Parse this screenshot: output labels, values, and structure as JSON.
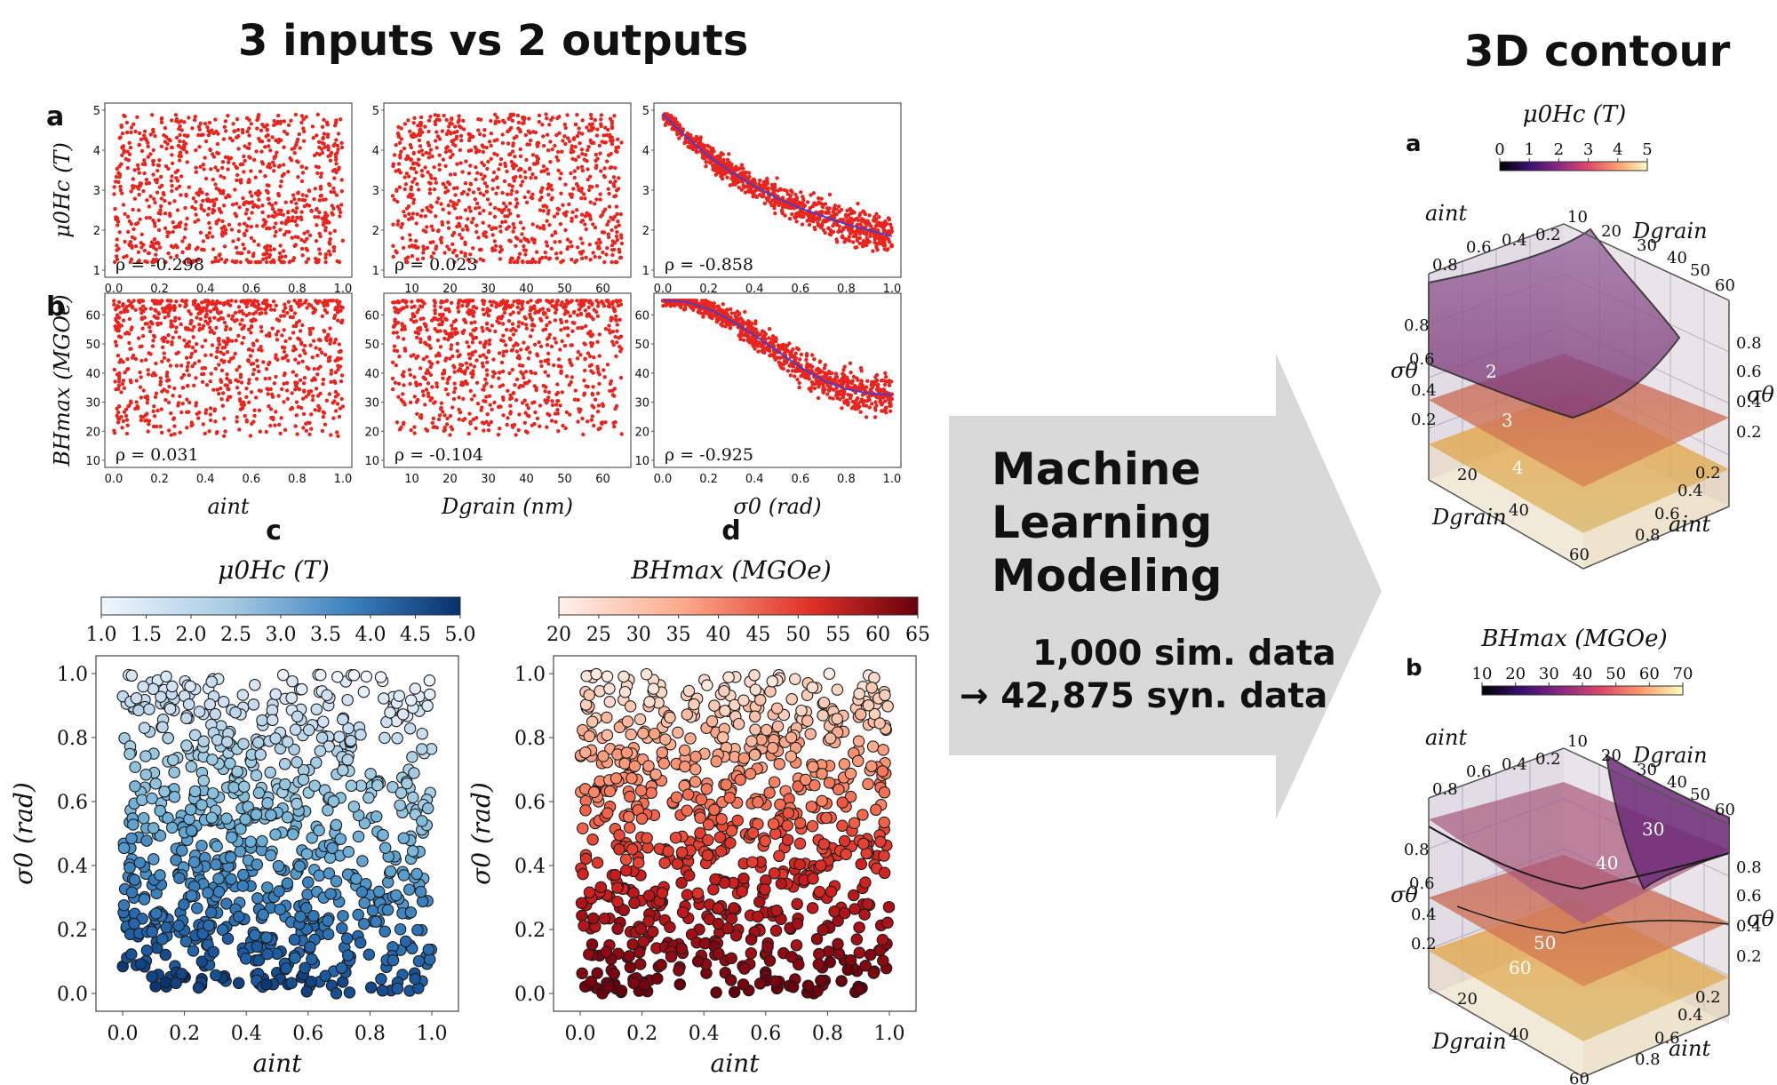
{
  "headings": {
    "left": "3 inputs vs 2 outputs",
    "right": "3D contour"
  },
  "arrow": {
    "line1": "Machine",
    "line2": "Learning",
    "line3": "Modeling",
    "data1": "1,000 sim. data",
    "data2": "→ 42,875 syn. data"
  },
  "colors": {
    "scatter_red": "#e8251f",
    "fit_line": "#4b3cc9",
    "arrow_gray": "#d9d9d9",
    "blue_dark": "#08306b",
    "blue_light": "#f0f6fd",
    "red_dark": "#67000d",
    "red_light": "#fff1ea"
  },
  "chart_data": [
    {
      "id": "a",
      "type": "scatter",
      "panel_label": "a",
      "ylabel": "μ0Hc (T)",
      "row_ylim": [
        1,
        5
      ],
      "yticks": [
        "1",
        "2",
        "3",
        "4",
        "5"
      ],
      "subplots": [
        {
          "xlabel": "aint",
          "xlim": [
            0,
            1
          ],
          "xticks": [
            "0.0",
            "0.2",
            "0.4",
            "0.6",
            "0.8",
            "1.0"
          ],
          "rho": "ρ = -0.298",
          "trend": "uniform_wide",
          "n_points": 1000
        },
        {
          "xlabel": "Dgrain (nm)",
          "xlim": [
            5,
            65
          ],
          "xticks": [
            "10",
            "20",
            "30",
            "40",
            "50",
            "60"
          ],
          "rho": "ρ = 0.023",
          "trend": "uniform_wide",
          "n_points": 1000
        },
        {
          "xlabel": "σ0 (rad)",
          "xlim": [
            0,
            1
          ],
          "xticks": [
            "0.0",
            "0.2",
            "0.4",
            "0.6",
            "0.8",
            "1.0"
          ],
          "rho": "ρ = -0.858",
          "trend": "decay",
          "fit_curve": {
            "x": [
              0,
              0.1,
              0.2,
              0.3,
              0.4,
              0.5,
              0.6,
              0.7,
              0.8,
              0.9,
              1.0
            ],
            "y": [
              4.9,
              4.35,
              3.85,
              3.45,
              3.1,
              2.8,
              2.55,
              2.35,
              2.15,
              2.0,
              1.85
            ]
          },
          "n_points": 1000
        }
      ]
    },
    {
      "id": "b",
      "type": "scatter",
      "panel_label": "b",
      "ylabel": "BHmax (MGOe)",
      "row_ylim": [
        10,
        65
      ],
      "yticks": [
        "10",
        "20",
        "30",
        "40",
        "50",
        "60"
      ],
      "subplots": [
        {
          "xlabel": "aint",
          "xlim": [
            0,
            1
          ],
          "xticks": [
            "0.0",
            "0.2",
            "0.4",
            "0.6",
            "0.8",
            "1.0"
          ],
          "rho": "ρ = 0.031",
          "trend": "uniform_high",
          "n_points": 1000
        },
        {
          "xlabel": "Dgrain (nm)",
          "xlim": [
            5,
            65
          ],
          "xticks": [
            "10",
            "20",
            "30",
            "40",
            "50",
            "60"
          ],
          "rho": "ρ = -0.104",
          "trend": "uniform_high",
          "n_points": 1000
        },
        {
          "xlabel": "σ0 (rad)",
          "xlim": [
            0,
            1
          ],
          "xticks": [
            "0.0",
            "0.2",
            "0.4",
            "0.6",
            "0.8",
            "1.0"
          ],
          "rho": "ρ = -0.925",
          "trend": "sigmoid",
          "fit_curve": {
            "x": [
              0,
              0.1,
              0.2,
              0.3,
              0.4,
              0.5,
              0.6,
              0.7,
              0.8,
              0.9,
              1.0
            ],
            "y": [
              65,
              64.5,
              62,
              58,
              53,
              47.5,
              42,
              37.5,
              34.5,
              33,
              32.5
            ]
          },
          "n_points": 1000
        }
      ]
    },
    {
      "id": "c",
      "type": "scatter",
      "panel_label": "c",
      "title": "μ0Hc (T)",
      "xlabel": "aint",
      "ylabel": "σ0 (rad)",
      "xlim": [
        0,
        1
      ],
      "ylim": [
        0,
        1
      ],
      "xticks": [
        "0.0",
        "0.2",
        "0.4",
        "0.6",
        "0.8",
        "1.0"
      ],
      "yticks": [
        "0.0",
        "0.2",
        "0.4",
        "0.6",
        "0.8",
        "1.0"
      ],
      "colorbar": {
        "min": 1.0,
        "max": 5.0,
        "ticks": [
          "1.0",
          "1.5",
          "2.0",
          "2.5",
          "3.0",
          "3.5",
          "4.0",
          "4.5",
          "5.0"
        ],
        "colormap": "Blues"
      },
      "n_points": 1000
    },
    {
      "id": "d",
      "type": "scatter",
      "panel_label": "d",
      "title": "BHmax (MGOe)",
      "xlabel": "aint",
      "ylabel": "σ0 (rad)",
      "xlim": [
        0,
        1
      ],
      "ylim": [
        0,
        1
      ],
      "xticks": [
        "0.0",
        "0.2",
        "0.4",
        "0.6",
        "0.8",
        "1.0"
      ],
      "yticks": [
        "0.0",
        "0.2",
        "0.4",
        "0.6",
        "0.8",
        "1.0"
      ],
      "colorbar": {
        "min": 20,
        "max": 65,
        "ticks": [
          "20",
          "25",
          "30",
          "35",
          "40",
          "45",
          "50",
          "55",
          "60",
          "65"
        ],
        "colormap": "Reds"
      },
      "n_points": 1000
    },
    {
      "id": "3d-a",
      "type": "heatmap",
      "panel_label": "a",
      "title": "μ0Hc (T)",
      "colorbar": {
        "min": 0,
        "max": 5,
        "ticks": [
          "0",
          "1",
          "2",
          "3",
          "4",
          "5"
        ],
        "colormap": "inferno"
      },
      "contour_labels": [
        "2",
        "3",
        "4"
      ],
      "axes": {
        "aint_top": [
          "0.8",
          "0.6",
          "0.4",
          "0.2"
        ],
        "dgrain_top": [
          "10",
          "20",
          "30",
          "40",
          "50",
          "60"
        ],
        "sigma_left": [
          "0.8",
          "0.6",
          "0.4",
          "0.2"
        ],
        "sigma_right": [
          "0.8",
          "0.6",
          "0.4",
          "0.2"
        ],
        "dgrain_bottom": [
          "20",
          "40",
          "60"
        ],
        "aint_bottom": [
          "0.2",
          "0.4",
          "0.6",
          "0.8"
        ],
        "label_aint": "aint",
        "label_dgrain": "Dgrain",
        "label_sigma": "σθ"
      }
    },
    {
      "id": "3d-b",
      "type": "heatmap",
      "panel_label": "b",
      "title": "BHmax (MGOe)",
      "colorbar": {
        "min": 10,
        "max": 70,
        "ticks": [
          "10",
          "20",
          "30",
          "40",
          "50",
          "60",
          "70"
        ],
        "colormap": "inferno"
      },
      "contour_labels": [
        "30",
        "40",
        "50",
        "60"
      ],
      "axes": {
        "aint_top": [
          "0.8",
          "0.6",
          "0.4",
          "0.2"
        ],
        "dgrain_top": [
          "10",
          "20",
          "30",
          "40",
          "50",
          "60"
        ],
        "sigma_left": [
          "0.8",
          "0.6",
          "0.4",
          "0.2"
        ],
        "sigma_right": [
          "0.8",
          "0.6",
          "0.4",
          "0.2"
        ],
        "dgrain_bottom": [
          "20",
          "40",
          "60"
        ],
        "aint_bottom": [
          "0.2",
          "0.4",
          "0.6",
          "0.8"
        ],
        "label_aint": "aint",
        "label_dgrain": "Dgrain",
        "label_sigma": "σθ"
      }
    }
  ]
}
